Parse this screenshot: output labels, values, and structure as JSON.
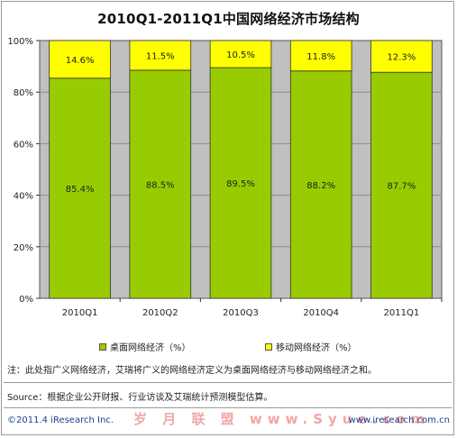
{
  "title": "2010Q1-2011Q1中国网络经济市场结构",
  "colors": {
    "desktop": "#99cc00",
    "mobile": "#ffff00",
    "plot_bg": "#c0c0c0",
    "grid": "#8c8c8c"
  },
  "chart_data": {
    "type": "bar",
    "stacked": true,
    "percent": true,
    "title": "2010Q1-2011Q1中国网络经济市场结构",
    "categories": [
      "2010Q1",
      "2010Q2",
      "2010Q3",
      "2010Q4",
      "2011Q1"
    ],
    "series": [
      {
        "name": "桌面网络经济（%）",
        "values": [
          85.4,
          88.5,
          89.5,
          88.2,
          87.7
        ],
        "labels": [
          "85.4%",
          "88.5%",
          "89.5%",
          "88.2%",
          "87.7%"
        ]
      },
      {
        "name": "移动网络经济（%）",
        "values": [
          14.6,
          11.5,
          10.5,
          11.8,
          12.3
        ],
        "labels": [
          "14.6%",
          "11.5%",
          "10.5%",
          "11.8%",
          "12.3%"
        ]
      }
    ],
    "ylim": [
      0,
      100
    ],
    "yticks": [
      "0%",
      "20%",
      "40%",
      "60%",
      "80%",
      "100%"
    ],
    "grid": true,
    "legend": "bottom"
  },
  "legend": {
    "desktop": "桌面网络经济（%）",
    "mobile": "移动网络经济（%）"
  },
  "note": "注：此处指广义网络经济，艾瑞将广义的网络经济定义为桌面网络经济与移动网络经济之和。",
  "source": "Source：根据企业公开财报、行业访谈及艾瑞统计预测模型估算。",
  "footer": {
    "copyright": "©2011.4 iResearch Inc.",
    "website": "www.iresearch.com.cn",
    "watermark": "岁 月 联 盟 www.Syue.com"
  }
}
